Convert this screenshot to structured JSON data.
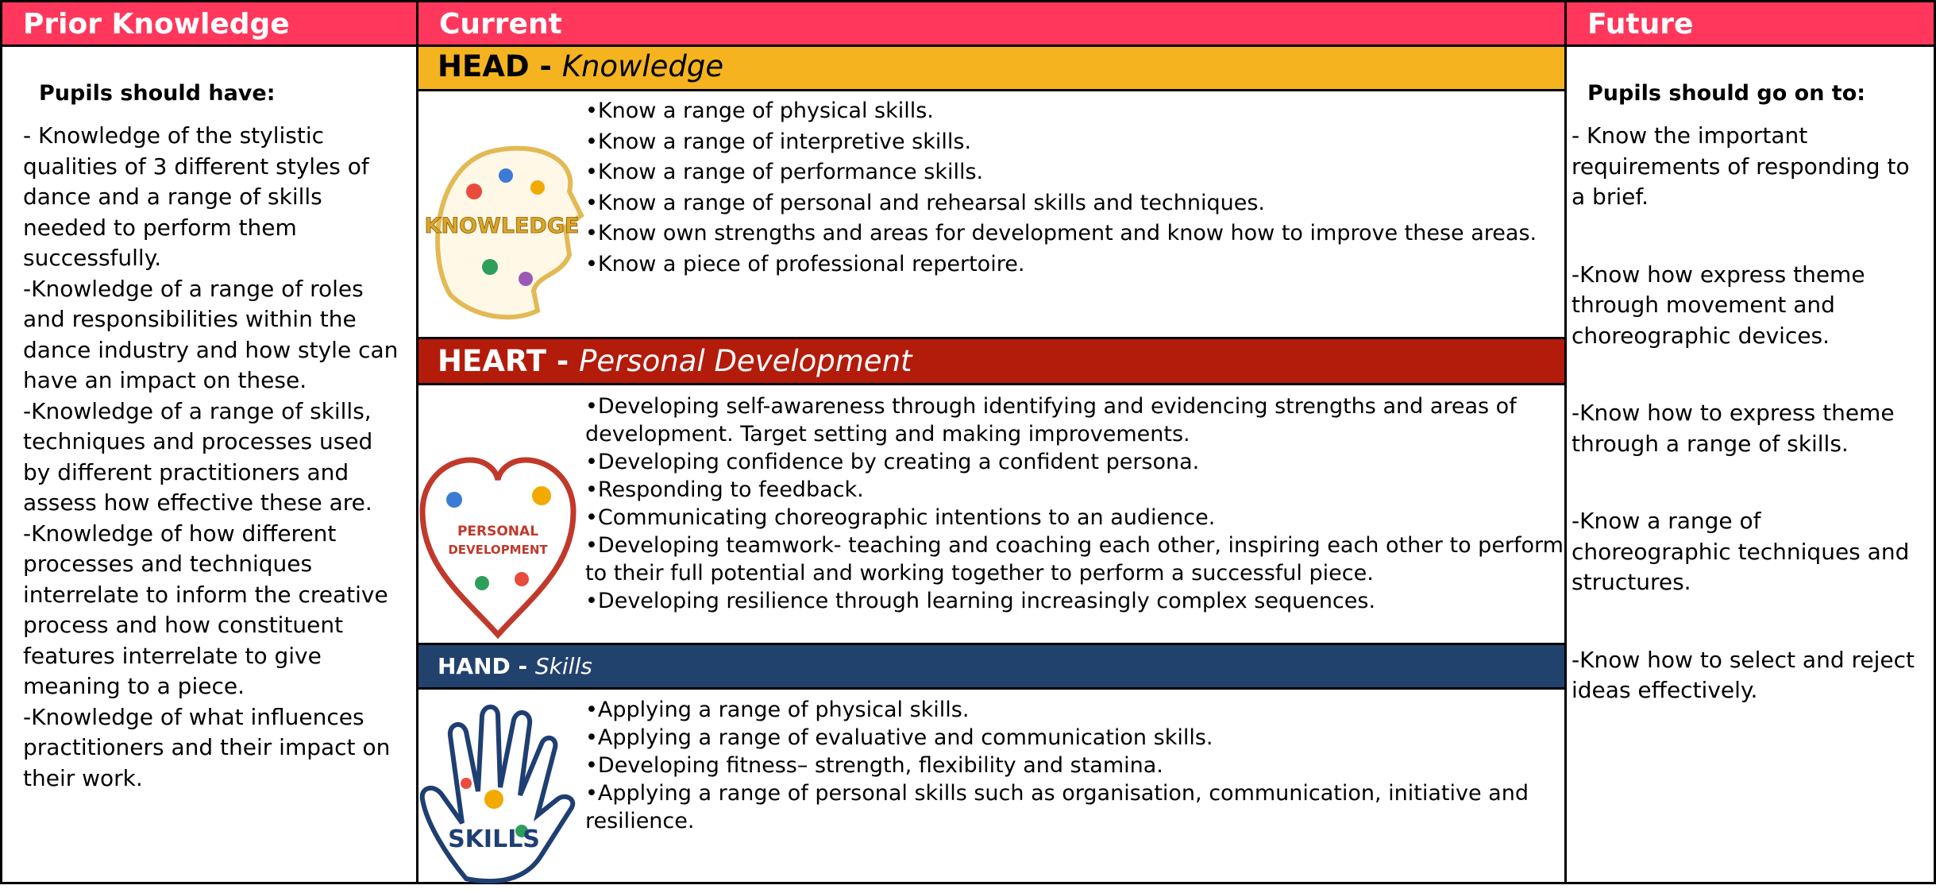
{
  "columns": {
    "prior": "Prior Knowledge",
    "current": "Current",
    "future": "Future"
  },
  "prior": {
    "heading": "Pupils should have:",
    "items": [
      "- Knowledge of the stylistic qualities of 3 different styles of dance and a range of skills needed to perform them successfully.",
      "-Knowledge of a range of roles and responsibilities within the dance industry and how style can have an impact on these.",
      "-Knowledge of a range of skills, techniques and processes used by different practitioners and assess how effective these are.",
      "-Knowledge of how different processes and techniques interrelate to inform the creative process and how constituent features interrelate to give meaning to a piece.",
      "-Knowledge of what influences practitioners and their impact on their work."
    ]
  },
  "current": {
    "sections": [
      {
        "label": "HEAD -",
        "sublabel": "Knowledge",
        "icon_text": "KNOWLEDGE",
        "items": [
          "•Know a range of physical skills.",
          "•Know a range of interpretive skills.",
          "•Know a range of performance skills.",
          "•Know a range of personal and rehearsal skills and techniques.",
          "•Know own strengths and areas for development and know how to improve these areas.",
          "•Know a piece of professional repertoire."
        ]
      },
      {
        "label": "HEART -",
        "sublabel": "Personal Development",
        "icon_text": [
          "PERSONAL",
          "DEVELOPMENT"
        ],
        "items": [
          "•Developing self-awareness through identifying and evidencing strengths and areas of development. Target setting and making improvements.",
          "•Developing confidence by creating a confident persona.",
          "•Responding to feedback.",
          "•Communicating choreographic intentions to an audience.",
          "•Developing teamwork- teaching and coaching each other, inspiring each other to perform to their full potential and working together to perform a successful piece.",
          "•Developing resilience through learning increasingly complex sequences."
        ]
      },
      {
        "label": "HAND -",
        "sublabel": "Skills",
        "icon_text": "SKILLS",
        "items": [
          "•Applying a range of physical skills.",
          "•Applying a range of evaluative and communication skills.",
          "•Developing fitness– strength, flexibility and stamina.",
          "•Applying a range of personal skills such as organisation, communication, initiative and resilience."
        ]
      }
    ]
  },
  "future": {
    "heading": "Pupils should go on to:",
    "items": [
      "- Know the important requirements of responding to a brief.",
      "-Know how express theme through movement and choreographic devices.",
      "-Know how to express theme through a range of skills.",
      "-Know a range of choreographic techniques and structures.",
      "-Know how to select and reject ideas effectively."
    ]
  }
}
